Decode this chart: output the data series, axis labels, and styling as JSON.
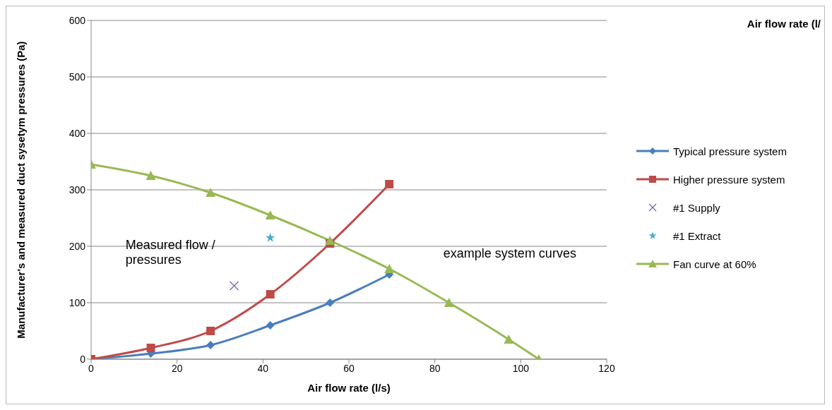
{
  "chart_data": {
    "type": "line",
    "xlabel": "Air flow rate (l/s)",
    "ylabel": "Manufacturer's and measured duct sysetym pressures (Pa)",
    "xlim": [
      0,
      120
    ],
    "xticks": [
      0,
      20,
      40,
      60,
      80,
      100,
      120
    ],
    "ylim": [
      0,
      600
    ],
    "yticks": [
      0,
      100,
      200,
      300,
      400,
      500,
      600
    ],
    "grid": "y",
    "legend": "right",
    "series": [
      {
        "name": "Typical pressure system",
        "color": "#4a7ebb",
        "marker": "diamond",
        "x": [
          0,
          13.9,
          27.8,
          41.7,
          55.6,
          69.4
        ],
        "values": [
          0,
          10,
          25,
          60,
          100,
          150
        ]
      },
      {
        "name": "Higher pressure system",
        "color": "#be4b48",
        "marker": "square",
        "x": [
          0,
          13.9,
          27.8,
          41.7,
          55.6,
          69.4
        ],
        "values": [
          0,
          20,
          50,
          115,
          205,
          310
        ]
      },
      {
        "name": "#1 Supply",
        "type": "scatter",
        "color": "#7d60a0",
        "marker": "cross",
        "x": [
          33.3
        ],
        "values": [
          130
        ]
      },
      {
        "name": "#1 Extract",
        "type": "scatter",
        "color": "#4bacc6",
        "marker": "star",
        "x": [
          41.7
        ],
        "values": [
          215
        ]
      },
      {
        "name": "Fan curve at 60%",
        "color": "#98b954",
        "marker": "triangle",
        "x": [
          0,
          13.9,
          27.8,
          41.7,
          55.6,
          69.4,
          83.3,
          97.2,
          104.2
        ],
        "values": [
          345,
          325,
          295,
          255,
          210,
          160,
          100,
          35,
          0
        ]
      }
    ],
    "annotations": [
      "Measured flow / pressures",
      "example system curves",
      "Air flow rate (l/"
    ]
  }
}
